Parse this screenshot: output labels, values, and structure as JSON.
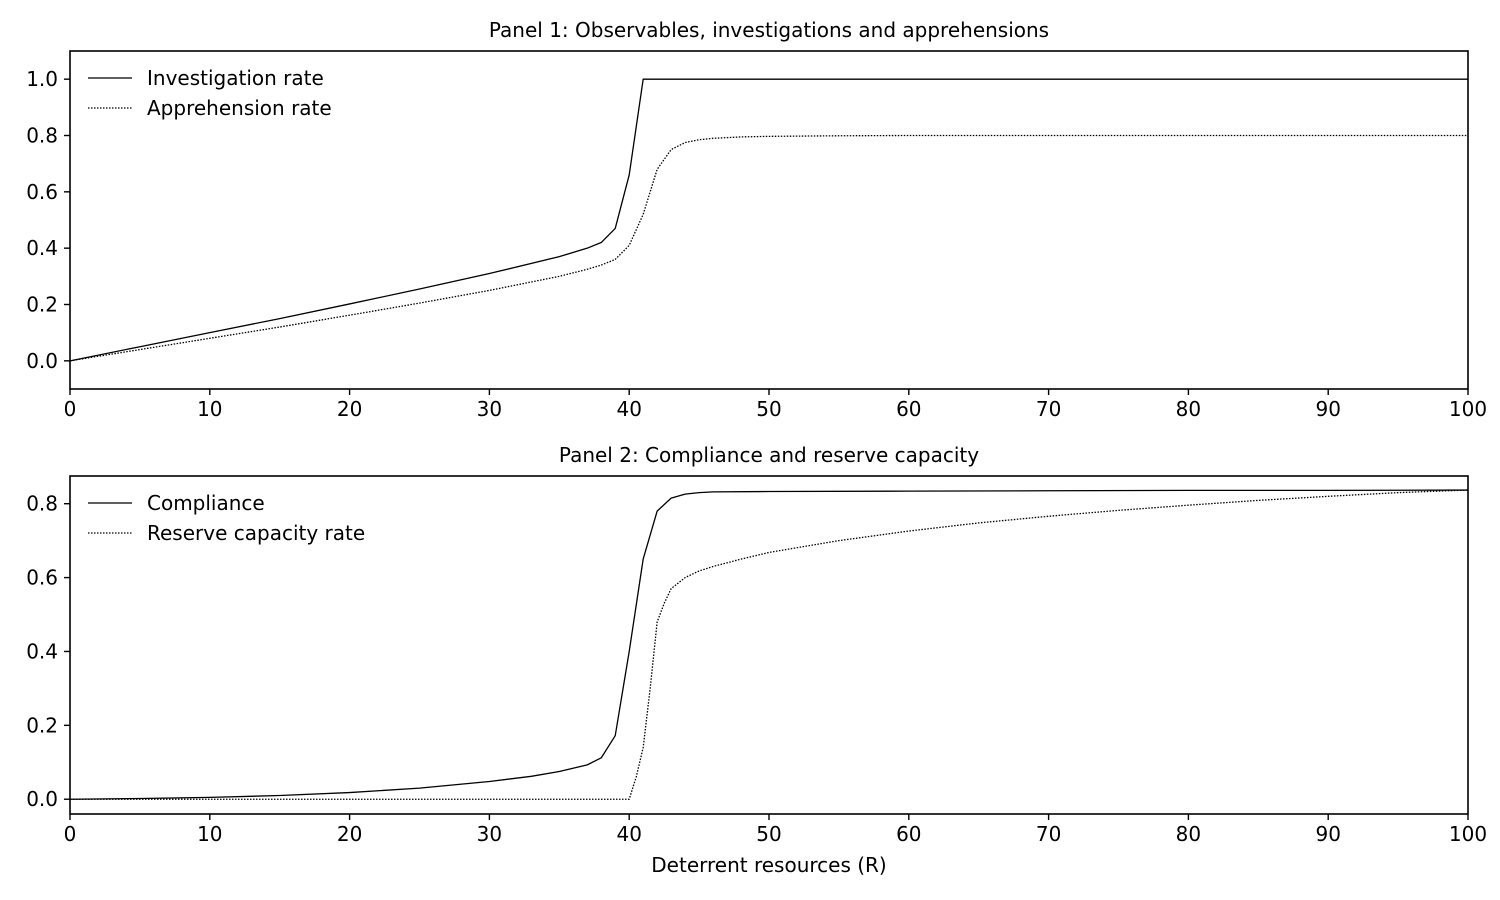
{
  "chart_data": [
    {
      "type": "line",
      "title": "Panel 1: Observables, investigations and apprehensions",
      "xlabel": "",
      "ylabel": "",
      "xlim": [
        0,
        100
      ],
      "ylim": [
        -0.1,
        1.1
      ],
      "xticks": [
        0,
        10,
        20,
        30,
        40,
        50,
        60,
        70,
        80,
        90,
        100
      ],
      "yticks": [
        "0.0",
        "0.2",
        "0.4",
        "0.6",
        "0.8",
        "1.0"
      ],
      "grid": false,
      "legend_position": "top-left",
      "series": [
        {
          "name": "Investigation rate",
          "style": "solid",
          "x": [
            0,
            5,
            10,
            15,
            20,
            25,
            30,
            35,
            37,
            38,
            39,
            40,
            41,
            45,
            50,
            60,
            70,
            80,
            90,
            100
          ],
          "y": [
            0.0,
            0.05,
            0.1,
            0.15,
            0.202,
            0.255,
            0.31,
            0.37,
            0.4,
            0.42,
            0.47,
            0.66,
            1.0,
            1.0,
            1.0,
            1.0,
            1.0,
            1.0,
            1.0,
            1.0
          ]
        },
        {
          "name": "Apprehension rate",
          "style": "dotted",
          "x": [
            0,
            5,
            10,
            15,
            20,
            25,
            30,
            35,
            37,
            38,
            39,
            40,
            41,
            42,
            43,
            44,
            45,
            46,
            48,
            50,
            55,
            60,
            70,
            80,
            90,
            100
          ],
          "y": [
            0.0,
            0.04,
            0.08,
            0.12,
            0.162,
            0.205,
            0.25,
            0.3,
            0.325,
            0.34,
            0.36,
            0.41,
            0.52,
            0.68,
            0.75,
            0.775,
            0.785,
            0.79,
            0.795,
            0.797,
            0.799,
            0.8,
            0.8,
            0.8,
            0.8,
            0.8
          ]
        }
      ]
    },
    {
      "type": "line",
      "title": "Panel 2: Compliance and reserve capacity",
      "xlabel": "Deterrent resources (R)",
      "ylabel": "",
      "xlim": [
        0,
        100
      ],
      "ylim": [
        -0.04,
        0.875
      ],
      "xticks": [
        0,
        10,
        20,
        30,
        40,
        50,
        60,
        70,
        80,
        90,
        100
      ],
      "yticks": [
        "0.0",
        "0.2",
        "0.4",
        "0.6",
        "0.8"
      ],
      "grid": false,
      "legend_position": "top-left",
      "series": [
        {
          "name": "Compliance",
          "style": "solid",
          "x": [
            0,
            5,
            10,
            15,
            20,
            25,
            30,
            33,
            35,
            37,
            38,
            39,
            40,
            41,
            42,
            43,
            44,
            45,
            46,
            50,
            60,
            70,
            80,
            90,
            100
          ],
          "y": [
            0.0,
            0.002,
            0.005,
            0.01,
            0.018,
            0.03,
            0.048,
            0.062,
            0.075,
            0.093,
            0.112,
            0.172,
            0.4,
            0.65,
            0.78,
            0.815,
            0.826,
            0.83,
            0.832,
            0.833,
            0.834,
            0.835,
            0.836,
            0.836,
            0.837
          ]
        },
        {
          "name": "Reserve capacity rate",
          "style": "dotted",
          "x": [
            0,
            10,
            20,
            30,
            39,
            40,
            40.5,
            41,
            41.5,
            42,
            42.5,
            43,
            44,
            45,
            46,
            48,
            50,
            55,
            60,
            65,
            70,
            75,
            80,
            85,
            90,
            95,
            100
          ],
          "y": [
            0.0,
            0.0,
            0.0,
            0.0,
            0.0,
            0.0,
            0.06,
            0.14,
            0.3,
            0.48,
            0.53,
            0.57,
            0.6,
            0.618,
            0.63,
            0.65,
            0.668,
            0.7,
            0.726,
            0.748,
            0.766,
            0.782,
            0.796,
            0.809,
            0.82,
            0.83,
            0.837
          ]
        }
      ]
    }
  ]
}
